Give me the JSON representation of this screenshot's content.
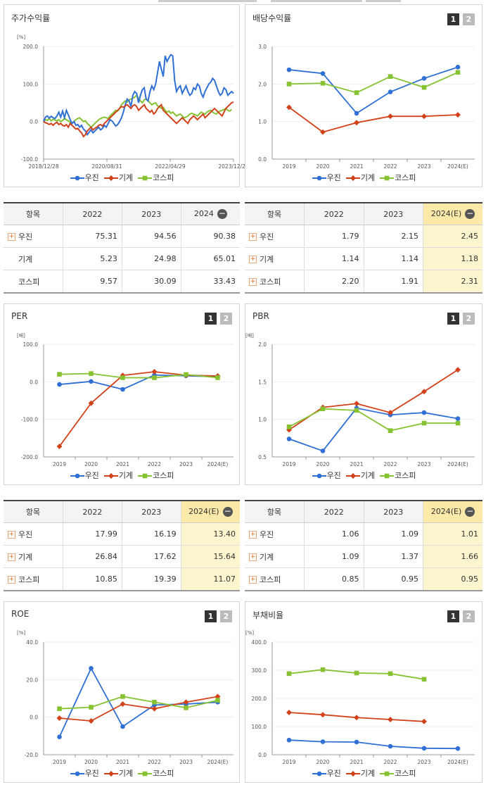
{
  "colors": {
    "woojin": "#2f6fd6",
    "machine": "#d2421a",
    "kospi": "#86c232"
  },
  "legend": [
    "우진",
    "기계",
    "코스피"
  ],
  "buttons": [
    "1",
    "2"
  ],
  "panels": [
    {
      "title": "주가수익률",
      "unit": "[%]",
      "buttons": false
    },
    {
      "title": "배당수익률",
      "unit": "",
      "buttons": true
    },
    {
      "title": "PER",
      "unit": "[배]",
      "buttons": true
    },
    {
      "title": "PBR",
      "unit": "[배]",
      "buttons": true
    },
    {
      "title": "ROE",
      "unit": "[%]",
      "buttons": true
    },
    {
      "title": "부채비율",
      "unit": "[%]",
      "buttons": true
    }
  ],
  "chart_data": [
    {
      "type": "line",
      "title": "주가수익률",
      "ylabel": "[%]",
      "ylim": [
        -100,
        200
      ],
      "yticks": [
        "200.0",
        "100.0",
        "0.0",
        "-100.0"
      ],
      "x_tick_labels": [
        "2018/12/28",
        "2020/08/31",
        "2022/04/29",
        "2023/12/28"
      ],
      "series": [
        {
          "name": "우진",
          "values": [
            0,
            12,
            15,
            9,
            14,
            10,
            8,
            15,
            25,
            12,
            28,
            10,
            30,
            18,
            5,
            -5,
            0,
            -10,
            -8,
            -15,
            -10,
            -20,
            -25,
            -35,
            -28,
            -22,
            -30,
            -25,
            -20,
            -15,
            -22,
            -18,
            -10,
            -15,
            -5,
            5,
            2,
            -5,
            -12,
            -8,
            0,
            10,
            25,
            45,
            60,
            55,
            40,
            70,
            80,
            75,
            50,
            70,
            85,
            90,
            60,
            55,
            80,
            95,
            85,
            100,
            130,
            160,
            140,
            120,
            175,
            160,
            170,
            178,
            175,
            110,
            80,
            90,
            95,
            75,
            85,
            95,
            80,
            70,
            75,
            90,
            85,
            100,
            95,
            75,
            65,
            80,
            90,
            100,
            105,
            115,
            110,
            95,
            80,
            70,
            75,
            90,
            85,
            70,
            75,
            80,
            75
          ],
          "xticks_at": [
            0,
            33,
            66,
            99
          ]
        },
        {
          "name": "기계",
          "values": [
            0,
            -3,
            -5,
            -8,
            -5,
            -10,
            -5,
            -2,
            -8,
            -5,
            -10,
            -12,
            -8,
            -15,
            -5,
            -10,
            -15,
            -20,
            -18,
            -25,
            -30,
            -40,
            -35,
            -25,
            -20,
            -15,
            -22,
            -18,
            -15,
            -10,
            -8,
            -12,
            -5,
            0,
            5,
            10,
            15,
            20,
            25,
            30,
            35,
            40,
            38,
            42,
            45,
            40,
            35,
            42,
            45,
            40,
            30,
            35,
            40,
            45,
            35,
            30,
            25,
            30,
            20,
            25,
            35,
            40,
            45,
            30,
            25,
            20,
            15,
            10,
            5,
            0,
            -5,
            0,
            5,
            10,
            5,
            0,
            -5,
            5,
            10,
            15,
            10,
            5,
            10,
            15,
            20,
            10,
            15,
            20,
            25,
            30,
            35,
            30,
            25,
            20,
            15,
            25,
            35,
            40,
            45,
            50,
            52
          ]
        },
        {
          "name": "코스피",
          "values": [
            0,
            5,
            3,
            8,
            2,
            6,
            4,
            2,
            5,
            0,
            3,
            8,
            5,
            2,
            -2,
            -5,
            0,
            5,
            8,
            10,
            5,
            0,
            2,
            -5,
            -10,
            -15,
            -10,
            -5,
            0,
            5,
            8,
            10,
            12,
            10,
            8,
            15,
            20,
            25,
            30,
            28,
            35,
            45,
            50,
            55,
            52,
            58,
            60,
            62,
            65,
            70,
            62,
            55,
            50,
            58,
            60,
            55,
            50,
            45,
            48,
            50,
            42,
            40,
            35,
            38,
            30,
            25,
            28,
            22,
            25,
            20,
            15,
            18,
            20,
            15,
            10,
            12,
            15,
            20,
            22,
            20,
            18,
            15,
            20,
            25,
            22,
            20,
            25,
            28,
            30,
            25,
            22,
            20,
            25,
            28,
            30,
            32,
            35,
            30,
            28,
            32
          ]
        }
      ]
    },
    {
      "type": "line",
      "title": "배당수익률",
      "ylim": [
        0,
        3
      ],
      "yticks": [
        "3.0",
        "2.0",
        "1.0",
        "0.0"
      ],
      "categories": [
        "2019",
        "2020",
        "2021",
        "2022",
        "2023",
        "2024(E)"
      ],
      "series": [
        {
          "name": "우진",
          "values": [
            2.38,
            2.28,
            1.22,
            1.79,
            2.15,
            2.45
          ]
        },
        {
          "name": "기계",
          "values": [
            1.38,
            0.72,
            0.97,
            1.14,
            1.14,
            1.18
          ]
        },
        {
          "name": "코스피",
          "values": [
            2.0,
            2.02,
            1.77,
            2.2,
            1.91,
            2.31
          ]
        }
      ]
    },
    {
      "type": "line",
      "title": "PER",
      "ylabel": "[배]",
      "ylim": [
        -200,
        100
      ],
      "yticks": [
        "100.0",
        "0.0",
        "-100.0",
        "-200.0"
      ],
      "categories": [
        "2019",
        "2020",
        "2021",
        "2022",
        "2023",
        "2024(E)"
      ],
      "series": [
        {
          "name": "우진",
          "values": [
            -7,
            1,
            -20,
            17.99,
            16.19,
            13.4
          ]
        },
        {
          "name": "기계",
          "values": [
            -172,
            -57,
            17,
            26.84,
            17.62,
            15.64
          ]
        },
        {
          "name": "코스피",
          "values": [
            20,
            22,
            11,
            10.85,
            19.39,
            11.07
          ]
        }
      ]
    },
    {
      "type": "line",
      "title": "PBR",
      "ylabel": "[배]",
      "ylim": [
        0.5,
        2
      ],
      "yticks": [
        "2.0",
        "1.5",
        "1.0",
        "0.5"
      ],
      "categories": [
        "2019",
        "2020",
        "2021",
        "2022",
        "2023",
        "2024(E)"
      ],
      "series": [
        {
          "name": "우진",
          "values": [
            0.74,
            0.58,
            1.15,
            1.06,
            1.09,
            1.01
          ]
        },
        {
          "name": "기계",
          "values": [
            0.86,
            1.16,
            1.21,
            1.09,
            1.37,
            1.66
          ]
        },
        {
          "name": "코스피",
          "values": [
            0.9,
            1.14,
            1.12,
            0.85,
            0.95,
            0.95
          ]
        }
      ]
    },
    {
      "type": "line",
      "title": "ROE",
      "ylabel": "[%]",
      "ylim": [
        -20,
        40
      ],
      "yticks": [
        "40.0",
        "20.0",
        "0.0",
        "-20.0"
      ],
      "categories": [
        "2019",
        "2020",
        "2021",
        "2022",
        "2023",
        "2024(E)"
      ],
      "series": [
        {
          "name": "우진",
          "values": [
            -10.5,
            26,
            -5,
            6.5,
            7,
            8
          ]
        },
        {
          "name": "기계",
          "values": [
            -0.5,
            -2,
            7,
            4.5,
            8,
            11
          ]
        },
        {
          "name": "코스피",
          "values": [
            4.5,
            5.3,
            11,
            8,
            5,
            9
          ]
        }
      ]
    },
    {
      "type": "line",
      "title": "부채비율",
      "ylabel": "[%]",
      "ylim": [
        0,
        400
      ],
      "yticks": [
        "400.0",
        "300.0",
        "200.0",
        "100.0",
        "0.0"
      ],
      "categories": [
        "2019",
        "2020",
        "2021",
        "2022",
        "2023",
        "2024(E)"
      ],
      "series": [
        {
          "name": "우진",
          "values": [
            52,
            46,
            45,
            30,
            23,
            22
          ]
        },
        {
          "name": "기계",
          "values": [
            150,
            142,
            132,
            125,
            118,
            null
          ]
        },
        {
          "name": "코스피",
          "values": [
            288,
            302,
            290,
            288,
            268,
            null
          ]
        }
      ]
    }
  ],
  "tables": [
    {
      "head": [
        "항목",
        "2022",
        "2023",
        "2024"
      ],
      "est_col": false,
      "plus": [
        true,
        false,
        false
      ],
      "rows": [
        [
          "우진",
          "75.31",
          "94.56",
          "90.38"
        ],
        [
          "기계",
          "5.23",
          "24.98",
          "65.01"
        ],
        [
          "코스피",
          "9.57",
          "30.09",
          "33.43"
        ]
      ]
    },
    {
      "head": [
        "항목",
        "2022",
        "2023",
        "2024(E)"
      ],
      "est_col": true,
      "plus": [
        true,
        true,
        true
      ],
      "rows": [
        [
          "우진",
          "1.79",
          "2.15",
          "2.45"
        ],
        [
          "기계",
          "1.14",
          "1.14",
          "1.18"
        ],
        [
          "코스피",
          "2.20",
          "1.91",
          "2.31"
        ]
      ]
    },
    {
      "head": [
        "항목",
        "2022",
        "2023",
        "2024(E)"
      ],
      "est_col": true,
      "plus": [
        true,
        true,
        true
      ],
      "rows": [
        [
          "우진",
          "17.99",
          "16.19",
          "13.40"
        ],
        [
          "기계",
          "26.84",
          "17.62",
          "15.64"
        ],
        [
          "코스피",
          "10.85",
          "19.39",
          "11.07"
        ]
      ]
    },
    {
      "head": [
        "항목",
        "2022",
        "2023",
        "2024(E)"
      ],
      "est_col": true,
      "plus": [
        true,
        true,
        true
      ],
      "rows": [
        [
          "우진",
          "1.06",
          "1.09",
          "1.01"
        ],
        [
          "기계",
          "1.09",
          "1.37",
          "1.66"
        ],
        [
          "코스피",
          "0.85",
          "0.95",
          "0.95"
        ]
      ]
    }
  ]
}
